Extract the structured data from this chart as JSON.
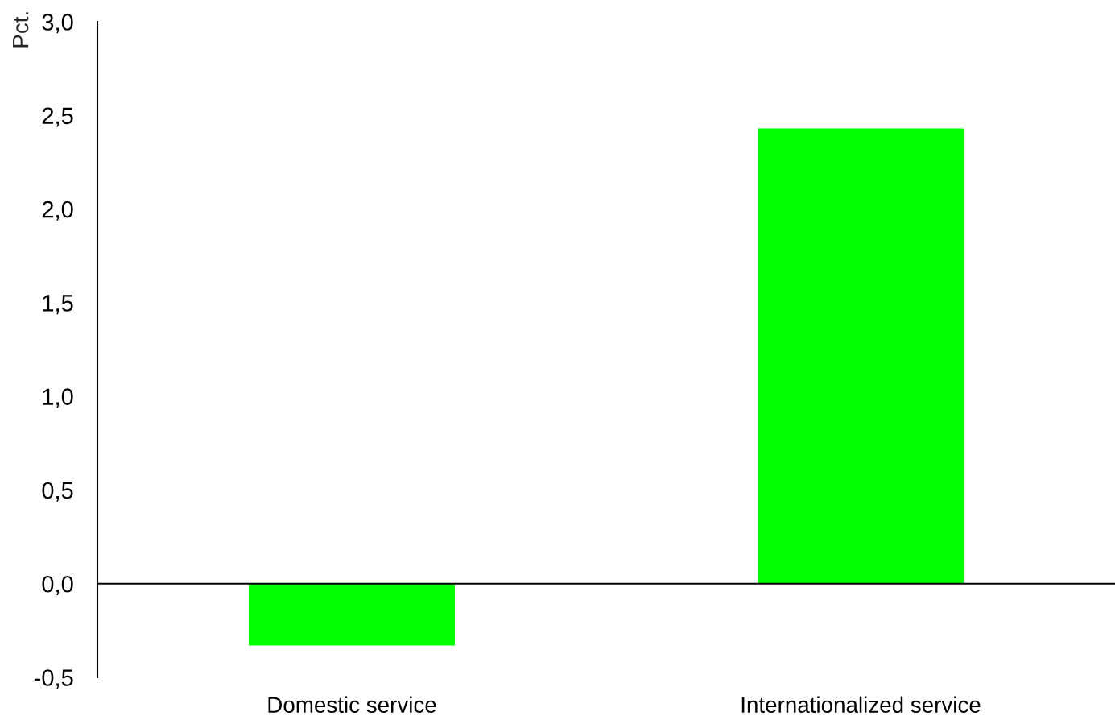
{
  "chart_data": {
    "type": "bar",
    "ylabel": "Pct.",
    "categories": [
      "Domestic service",
      "Internationalized service"
    ],
    "values": [
      -0.33,
      2.43
    ],
    "color": "#00ff00",
    "ylim": [
      -0.5,
      3.0
    ],
    "yticks": [
      {
        "value": -0.5,
        "label": "-0,5"
      },
      {
        "value": 0.0,
        "label": "0,0"
      },
      {
        "value": 0.5,
        "label": "0,5"
      },
      {
        "value": 1.0,
        "label": "1,0"
      },
      {
        "value": 1.5,
        "label": "1,5"
      },
      {
        "value": 2.0,
        "label": "2,0"
      },
      {
        "value": 2.5,
        "label": "2,5"
      },
      {
        "value": 3.0,
        "label": "3,0"
      }
    ],
    "ref_lines": [
      {
        "axis": "y",
        "value": 0,
        "color": "#000000",
        "line_style": "solid"
      }
    ],
    "grid": false
  }
}
